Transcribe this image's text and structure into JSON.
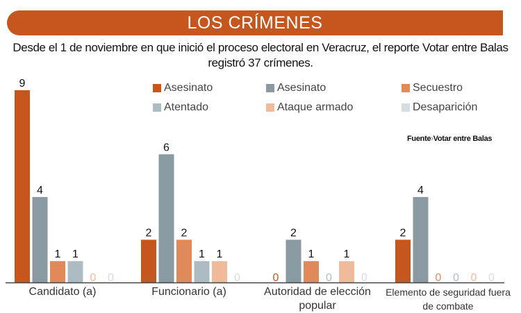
{
  "title": "LOS CRÍMENES",
  "subtitle": "Desde el 1 de noviembre en que inició el proceso electoral en Veracruz, el reporte Votar entre Balas registró 37 crímenes.",
  "source": {
    "label": "Fuente",
    "separator": "›",
    "value": "Votar entre Balas"
  },
  "chart_data": {
    "type": "bar",
    "categories": [
      "Candidato (a)",
      "Funcionario (a)",
      "Autoridad de elección popular",
      "Elemento de seguridad fuera de combate"
    ],
    "series": [
      {
        "name": "Asesinato",
        "color": "#c5561e",
        "values": [
          9,
          2,
          0,
          2
        ]
      },
      {
        "name": "Asesinato",
        "color": "#8a9aa3",
        "values": [
          4,
          6,
          2,
          4
        ]
      },
      {
        "name": "Secuestro",
        "color": "#e08a5c",
        "values": [
          1,
          2,
          1,
          0
        ]
      },
      {
        "name": "Atentado",
        "color": "#adbcc3",
        "values": [
          1,
          1,
          0,
          0
        ]
      },
      {
        "name": "Ataque armado",
        "color": "#f0bb9b",
        "values": [
          0,
          1,
          1,
          0
        ]
      },
      {
        "name": "Desaparición",
        "color": "#d5dde1",
        "values": [
          0,
          0,
          0,
          0
        ]
      }
    ],
    "ylim": [
      0,
      9
    ],
    "grid": false,
    "legend": "top-right"
  }
}
